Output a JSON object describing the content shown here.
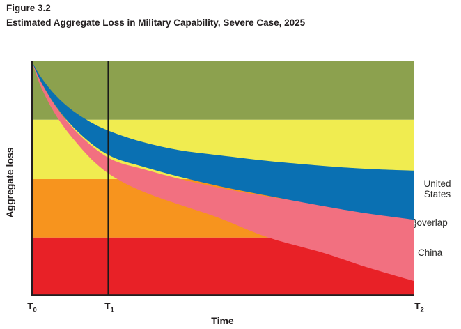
{
  "header": {
    "figure_label": "Figure 3.2",
    "title": "Estimated Aggregate Loss in Military Capability, Severe Case, 2025"
  },
  "chart_data": {
    "type": "area",
    "figure_label": "Figure 3.2",
    "title": "Estimated Aggregate Loss in Military Capability, Severe Case, 2025",
    "xlabel": "Time",
    "ylabel": "Aggregate loss",
    "axis_color": "#231f20",
    "reference_line": {
      "x": 0.201,
      "at_tick": "T1",
      "color": "#1a1a19"
    },
    "x_axis": {
      "ticks": [
        {
          "base": "T",
          "sub": "0",
          "x": 0
        },
        {
          "base": "T",
          "sub": "1",
          "x": 0.201
        },
        {
          "base": "T",
          "sub": "2",
          "x": 1
        }
      ]
    },
    "y_axis": {
      "numeric": false
    },
    "background_bands": [
      {
        "name": "loss-band-top",
        "color": "#8ca14e",
        "y_from": 0,
        "y_to": 0.251
      },
      {
        "name": "loss-band-upper-mid",
        "color": "#f0ec50",
        "y_from": 0.251,
        "y_to": 0.503
      },
      {
        "name": "loss-band-lower-mid",
        "color": "#f7941e",
        "y_from": 0.503,
        "y_to": 0.751
      },
      {
        "name": "loss-band-bottom",
        "color": "#e82127",
        "y_from": 0.751,
        "y_to": 1
      }
    ],
    "x_grid": [
      0,
      0.027,
      0.064,
      0.109,
      0.164,
      0.219,
      0.292,
      0.383,
      0.493,
      0.62,
      0.766,
      0.876,
      1
    ],
    "series": [
      {
        "name": "China",
        "color": "#f27080",
        "top_y": [
          0,
          0.096,
          0.195,
          0.287,
          0.37,
          0.426,
          0.46,
          0.5,
          0.54,
          0.577,
          0.612,
          0.642,
          0.669
        ],
        "bottom_y": [
          0,
          0.118,
          0.231,
          0.331,
          0.429,
          0.497,
          0.556,
          0.609,
          0.669,
          0.751,
          0.817,
          0.876,
          0.935
        ]
      },
      {
        "name": "United States",
        "color": "#0a70b2",
        "top_y": [
          0,
          0.074,
          0.148,
          0.213,
          0.269,
          0.308,
          0.346,
          0.379,
          0.402,
          0.426,
          0.447,
          0.459,
          0.467
        ],
        "bottom_y": [
          0,
          0.095,
          0.192,
          0.281,
          0.361,
          0.414,
          0.45,
          0.491,
          0.533,
          0.574,
          0.618,
          0.648,
          0.675
        ]
      }
    ],
    "annotations": [
      {
        "id": "united-states",
        "lines": [
          "United",
          "States"
        ]
      },
      {
        "id": "overlap",
        "text": "}overlap"
      },
      {
        "id": "china",
        "text": "China"
      }
    ]
  }
}
